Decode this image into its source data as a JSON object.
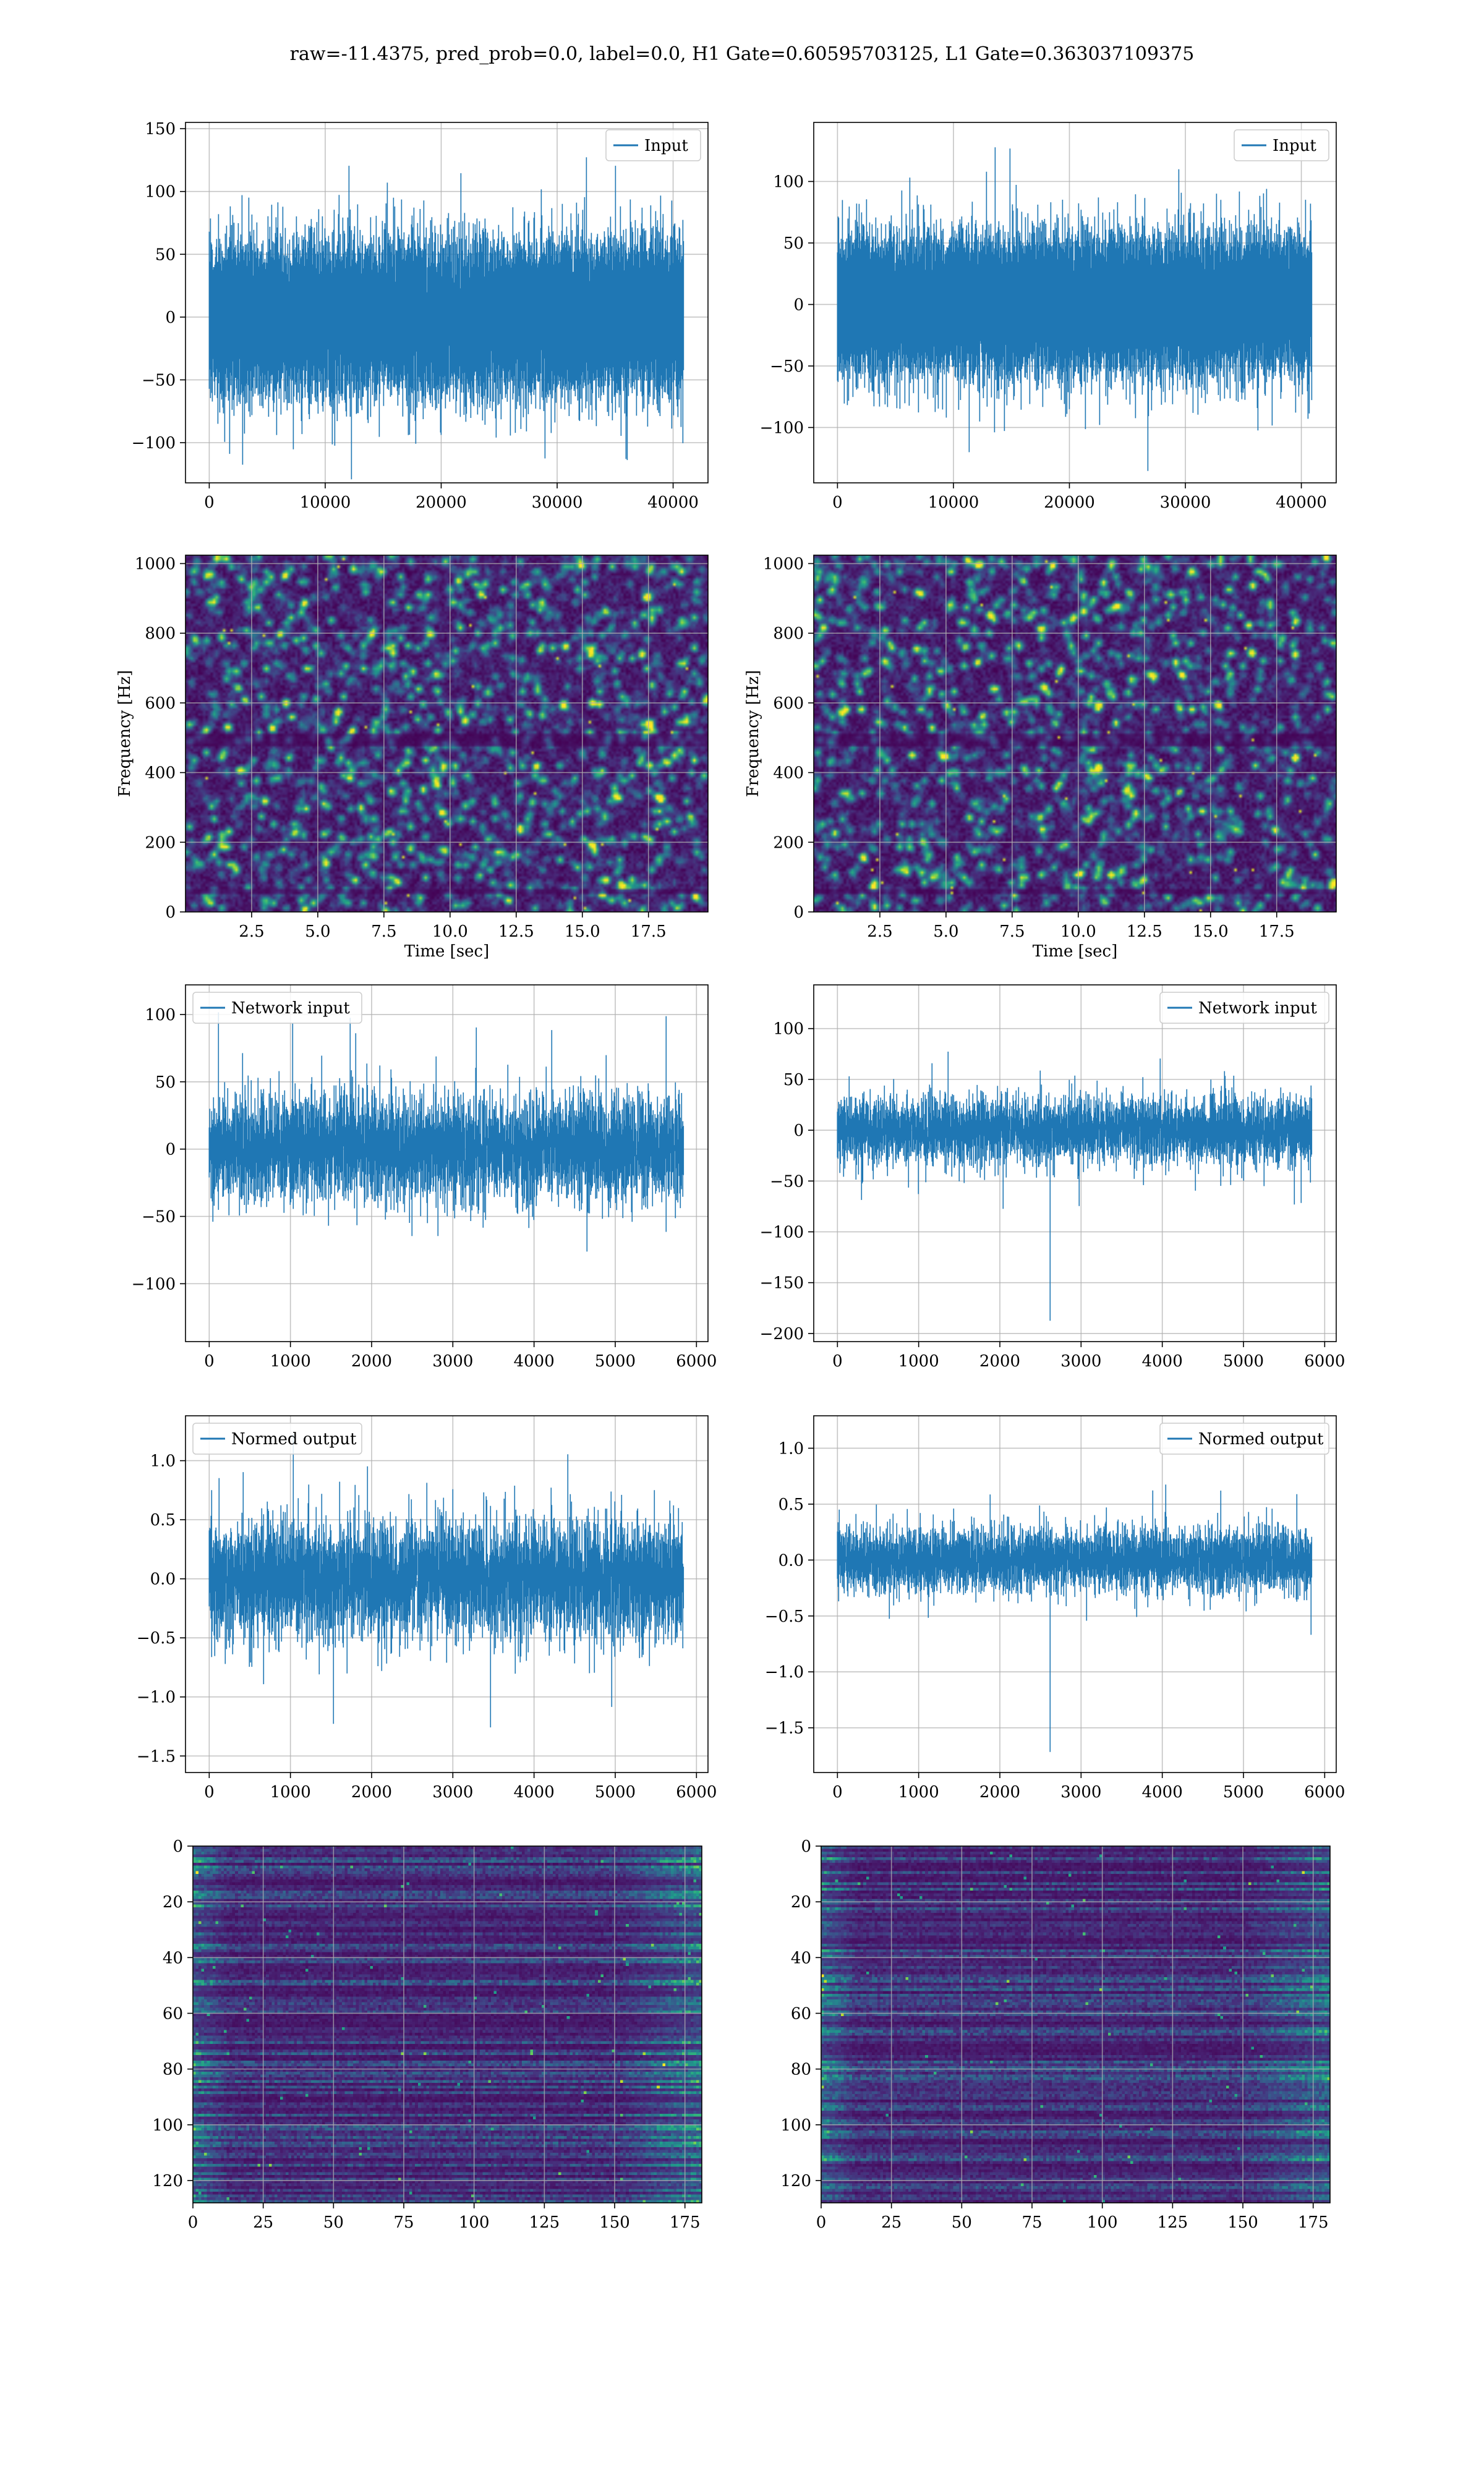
{
  "title": "raw=-11.4375, pred_prob=0.0, label=0.0, H1 Gate=0.60595703125, L1 Gate=0.363037109375",
  "colors": {
    "line": "#1f77b4",
    "grid": "#b0b0b0",
    "viridis_dark": "#440154",
    "viridis_mid": "#3b528b",
    "viridis_teal": "#21918c",
    "viridis_green": "#5ec962",
    "viridis_yellow": "#fde725"
  },
  "chart_data": [
    {
      "id": "input-h1",
      "type": "line",
      "legend": "Input",
      "legend_loc": "upper right",
      "n_points": 40960,
      "xlim": [
        -2048,
        43008
      ],
      "ylim": [
        -132,
        155
      ],
      "xticks": [
        0,
        10000,
        20000,
        30000,
        40000
      ],
      "xtick_labels": [
        "0",
        "10000",
        "20000",
        "30000",
        "40000"
      ],
      "yticks": [
        -100,
        -50,
        0,
        50,
        100,
        150
      ],
      "ytick_labels": [
        "−100",
        "−50",
        "0",
        "50",
        "100",
        "150"
      ],
      "amplitude": 42,
      "grid": true
    },
    {
      "id": "input-l1",
      "type": "line",
      "legend": "Input",
      "legend_loc": "upper right",
      "n_points": 40960,
      "xlim": [
        -2048,
        43008
      ],
      "ylim": [
        -145,
        148
      ],
      "xticks": [
        0,
        10000,
        20000,
        30000,
        40000
      ],
      "xtick_labels": [
        "0",
        "10000",
        "20000",
        "30000",
        "40000"
      ],
      "yticks": [
        -100,
        -50,
        0,
        50,
        100
      ],
      "ytick_labels": [
        "−100",
        "−50",
        "0",
        "50",
        "100"
      ],
      "amplitude": 40,
      "grid": true
    },
    {
      "id": "spec-h1",
      "type": "heatmap",
      "xlabel": "Time [sec]",
      "ylabel": "Frequency [Hz]",
      "xlim": [
        0,
        19.75
      ],
      "ylim": [
        0,
        1024
      ],
      "xticks": [
        2.5,
        5.0,
        7.5,
        10.0,
        12.5,
        15.0,
        17.5
      ],
      "xtick_labels": [
        "2.5",
        "5.0",
        "7.5",
        "10.0",
        "12.5",
        "15.0",
        "17.5"
      ],
      "yticks": [
        0,
        200,
        400,
        600,
        800,
        1000
      ],
      "ytick_labels": [
        "0",
        "200",
        "400",
        "600",
        "800",
        "1000"
      ],
      "grid": true
    },
    {
      "id": "spec-l1",
      "type": "heatmap",
      "xlabel": "Time [sec]",
      "ylabel": "Frequency [Hz]",
      "xlim": [
        0,
        19.75
      ],
      "ylim": [
        0,
        1024
      ],
      "xticks": [
        2.5,
        5.0,
        7.5,
        10.0,
        12.5,
        15.0,
        17.5
      ],
      "xtick_labels": [
        "2.5",
        "5.0",
        "7.5",
        "10.0",
        "12.5",
        "15.0",
        "17.5"
      ],
      "yticks": [
        0,
        200,
        400,
        600,
        800,
        1000
      ],
      "ytick_labels": [
        "0",
        "200",
        "400",
        "600",
        "800",
        "1000"
      ],
      "grid": true
    },
    {
      "id": "net-h1",
      "type": "line",
      "legend": "Network input",
      "legend_loc": "upper left",
      "n_points": 5850,
      "xlim": [
        -292,
        6142
      ],
      "ylim": [
        -143,
        122
      ],
      "xticks": [
        0,
        1000,
        2000,
        3000,
        4000,
        5000,
        6000
      ],
      "xtick_labels": [
        "0",
        "1000",
        "2000",
        "3000",
        "4000",
        "5000",
        "6000"
      ],
      "yticks": [
        -100,
        -50,
        0,
        50,
        100
      ],
      "ytick_labels": [
        "−100",
        "−50",
        "0",
        "50",
        "100"
      ],
      "amplitude": 30,
      "grid": true
    },
    {
      "id": "net-l1",
      "type": "line",
      "legend": "Network input",
      "legend_loc": "upper right",
      "n_points": 5850,
      "xlim": [
        -292,
        6142
      ],
      "ylim": [
        -208,
        143
      ],
      "xticks": [
        0,
        1000,
        2000,
        3000,
        4000,
        5000,
        6000
      ],
      "xtick_labels": [
        "0",
        "1000",
        "2000",
        "3000",
        "4000",
        "5000",
        "6000"
      ],
      "yticks": [
        -200,
        -150,
        -100,
        -50,
        0,
        50,
        100
      ],
      "ytick_labels": [
        "−200",
        "−150",
        "−100",
        "−50",
        "0",
        "50",
        "100"
      ],
      "amplitude": 25,
      "grid": true
    },
    {
      "id": "norm-h1",
      "type": "line",
      "legend": "Normed output",
      "legend_loc": "upper left",
      "n_points": 5850,
      "xlim": [
        -292,
        6142
      ],
      "ylim": [
        -1.64,
        1.38
      ],
      "xticks": [
        0,
        1000,
        2000,
        3000,
        4000,
        5000,
        6000
      ],
      "xtick_labels": [
        "0",
        "1000",
        "2000",
        "3000",
        "4000",
        "5000",
        "6000"
      ],
      "yticks": [
        -1.5,
        -1.0,
        -0.5,
        0.0,
        0.5,
        1.0
      ],
      "ytick_labels": [
        "−1.5",
        "−1.0",
        "−0.5",
        "0.0",
        "0.5",
        "1.0"
      ],
      "amplitude": 0.38,
      "grid": true
    },
    {
      "id": "norm-l1",
      "type": "line",
      "legend": "Normed output",
      "legend_loc": "upper right",
      "n_points": 5850,
      "xlim": [
        -292,
        6142
      ],
      "ylim": [
        -1.9,
        1.29
      ],
      "xticks": [
        0,
        1000,
        2000,
        3000,
        4000,
        5000,
        6000
      ],
      "xtick_labels": [
        "0",
        "1000",
        "2000",
        "3000",
        "4000",
        "5000",
        "6000"
      ],
      "yticks": [
        -1.5,
        -1.0,
        -0.5,
        0.0,
        0.5,
        1.0
      ],
      "ytick_labels": [
        "−1.5",
        "−1.0",
        "−0.5",
        "0.0",
        "0.5",
        "1.0"
      ],
      "amplitude": 0.22,
      "grid": true
    },
    {
      "id": "feat-h1",
      "type": "heatmap",
      "xlim": [
        0,
        181
      ],
      "ylim": [
        128,
        0
      ],
      "xticks": [
        0,
        25,
        50,
        75,
        100,
        125,
        150,
        175
      ],
      "xtick_labels": [
        "0",
        "25",
        "50",
        "75",
        "100",
        "125",
        "150",
        "175"
      ],
      "yticks": [
        0,
        20,
        40,
        60,
        80,
        100,
        120
      ],
      "ytick_labels": [
        "0",
        "20",
        "40",
        "60",
        "80",
        "100",
        "120"
      ],
      "grid": true
    },
    {
      "id": "feat-l1",
      "type": "heatmap",
      "xlim": [
        0,
        181
      ],
      "ylim": [
        128,
        0
      ],
      "xticks": [
        0,
        25,
        50,
        75,
        100,
        125,
        150,
        175
      ],
      "xtick_labels": [
        "0",
        "25",
        "50",
        "75",
        "100",
        "125",
        "150",
        "175"
      ],
      "yticks": [
        0,
        20,
        40,
        60,
        80,
        100,
        120
      ],
      "ytick_labels": [
        "0",
        "20",
        "40",
        "60",
        "80",
        "100",
        "120"
      ],
      "grid": true
    }
  ]
}
